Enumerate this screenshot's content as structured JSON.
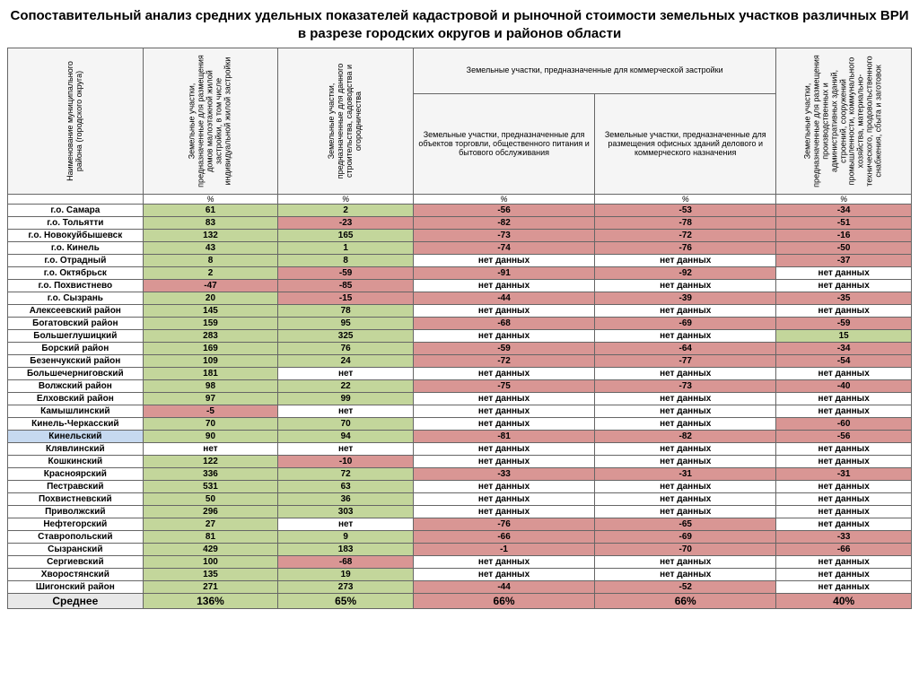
{
  "title": "Сопоставительный анализ средних удельных показателей кадастровой и рыночной стоимости земельных участков различных ВРИ в разрезе городских округов и районов области",
  "headers": {
    "col0": "Наименование муниципального района (городского округа)",
    "col1": "Земельные участки, предназначенные для размещения домов малоэтажной жилой застройки, в том числе индивидуальной жилой застройки",
    "col2": "Земельные участки, предназначенные для данного строительства, садоводства и огородничества",
    "group": "Земельные участки, предназначенные для коммерческой застройки",
    "col3": "Земельные участки, предназначенные для объектов торговли, общественного питания и бытового обслуживания",
    "col4": "Земельные участки, предназначенные для размещения офисных зданий делового и коммерческого назначения",
    "col5": "Земельные участки, предназначенные для размещения производственных и административных зданий, строений, сооружений промышленности, коммунального хозяйства, материально-технического, продовольственного снабжения, сбыта и заготовок"
  },
  "pct_label": "%",
  "nodata": "нет данных",
  "net": "нет",
  "colors": {
    "green": "#c3d69b",
    "red": "#d99694"
  },
  "rows": [
    {
      "name": "г.о. Самара",
      "v": [
        "61",
        "2",
        "-56",
        "-53",
        "-34"
      ],
      "c": [
        "green",
        "green",
        "red",
        "red",
        "red"
      ]
    },
    {
      "name": "г.о. Тольятти",
      "v": [
        "83",
        "-23",
        "-82",
        "-78",
        "-51"
      ],
      "c": [
        "green",
        "red",
        "red",
        "red",
        "red"
      ]
    },
    {
      "name": "г.о. Новокуйбышевск",
      "v": [
        "132",
        "165",
        "-73",
        "-72",
        "-16"
      ],
      "c": [
        "green",
        "green",
        "red",
        "red",
        "red"
      ]
    },
    {
      "name": "г.о. Кинель",
      "v": [
        "43",
        "1",
        "-74",
        "-76",
        "-50"
      ],
      "c": [
        "green",
        "green",
        "red",
        "red",
        "red"
      ]
    },
    {
      "name": "г.о. Отрадный",
      "v": [
        "8",
        "8",
        "нет данных",
        "нет данных",
        "-37"
      ],
      "c": [
        "green",
        "green",
        "none",
        "none",
        "red"
      ]
    },
    {
      "name": "г.о. Октябрьск",
      "v": [
        "2",
        "-59",
        "-91",
        "-92",
        "нет данных"
      ],
      "c": [
        "green",
        "red",
        "red",
        "red",
        "none"
      ]
    },
    {
      "name": "г.о. Похвистнево",
      "v": [
        "-47",
        "-85",
        "нет данных",
        "нет данных",
        "нет данных"
      ],
      "c": [
        "red",
        "red",
        "none",
        "none",
        "none"
      ]
    },
    {
      "name": "г.о. Сызрань",
      "v": [
        "20",
        "-15",
        "-44",
        "-39",
        "-35"
      ],
      "c": [
        "green",
        "red",
        "red",
        "red",
        "red"
      ]
    },
    {
      "name": "Алексеевский район",
      "v": [
        "145",
        "78",
        "нет данных",
        "нет данных",
        "нет данных"
      ],
      "c": [
        "green",
        "green",
        "none",
        "none",
        "none"
      ]
    },
    {
      "name": "Богатовский район",
      "v": [
        "159",
        "95",
        "-68",
        "-69",
        "-59"
      ],
      "c": [
        "green",
        "green",
        "red",
        "red",
        "red"
      ]
    },
    {
      "name": "Большеглушицкий",
      "v": [
        "283",
        "325",
        "нет данных",
        "нет данных",
        "15"
      ],
      "c": [
        "green",
        "green",
        "none",
        "none",
        "green"
      ]
    },
    {
      "name": "Борский район",
      "v": [
        "169",
        "76",
        "-59",
        "-64",
        "-34"
      ],
      "c": [
        "green",
        "green",
        "red",
        "red",
        "red"
      ]
    },
    {
      "name": "Безенчукский район",
      "v": [
        "109",
        "24",
        "-72",
        "-77",
        "-54"
      ],
      "c": [
        "green",
        "green",
        "red",
        "red",
        "red"
      ]
    },
    {
      "name": "Большечерниговский",
      "v": [
        "181",
        "нет",
        "нет данных",
        "нет данных",
        "нет данных"
      ],
      "c": [
        "green",
        "none",
        "none",
        "none",
        "none"
      ]
    },
    {
      "name": "Волжский район",
      "v": [
        "98",
        "22",
        "-75",
        "-73",
        "-40"
      ],
      "c": [
        "green",
        "green",
        "red",
        "red",
        "red"
      ]
    },
    {
      "name": "Елховский район",
      "v": [
        "97",
        "99",
        "нет данных",
        "нет данных",
        "нет данных"
      ],
      "c": [
        "green",
        "green",
        "none",
        "none",
        "none"
      ]
    },
    {
      "name": "Камышлинский",
      "v": [
        "-5",
        "нет",
        "нет данных",
        "нет данных",
        "нет данных"
      ],
      "c": [
        "red",
        "none",
        "none",
        "none",
        "none"
      ]
    },
    {
      "name": "Кинель-Черкасский",
      "v": [
        "70",
        "70",
        "нет данных",
        "нет данных",
        "-60"
      ],
      "c": [
        "green",
        "green",
        "none",
        "none",
        "red"
      ]
    },
    {
      "name": "Кинельский",
      "v": [
        "90",
        "94",
        "-81",
        "-82",
        "-56"
      ],
      "c": [
        "green",
        "green",
        "red",
        "red",
        "red"
      ],
      "hl": true
    },
    {
      "name": "Клявлинский",
      "v": [
        "нет",
        "нет",
        "нет данных",
        "нет данных",
        "нет данных"
      ],
      "c": [
        "none",
        "none",
        "none",
        "none",
        "none"
      ]
    },
    {
      "name": "Кошкинский",
      "v": [
        "122",
        "-10",
        "нет данных",
        "нет данных",
        "нет данных"
      ],
      "c": [
        "green",
        "red",
        "none",
        "none",
        "none"
      ]
    },
    {
      "name": "Красноярский",
      "v": [
        "336",
        "72",
        "-33",
        "-31",
        "-31"
      ],
      "c": [
        "green",
        "green",
        "red",
        "red",
        "red"
      ]
    },
    {
      "name": "Пестравский",
      "v": [
        "531",
        "63",
        "нет данных",
        "нет данных",
        "нет данных"
      ],
      "c": [
        "green",
        "green",
        "none",
        "none",
        "none"
      ]
    },
    {
      "name": "Похвистневский",
      "v": [
        "50",
        "36",
        "нет данных",
        "нет данных",
        "нет данных"
      ],
      "c": [
        "green",
        "green",
        "none",
        "none",
        "none"
      ]
    },
    {
      "name": "Приволжский",
      "v": [
        "296",
        "303",
        "нет данных",
        "нет данных",
        "нет данных"
      ],
      "c": [
        "green",
        "green",
        "none",
        "none",
        "none"
      ]
    },
    {
      "name": "Нефтегорский",
      "v": [
        "27",
        "нет",
        "-76",
        "-65",
        "нет данных"
      ],
      "c": [
        "green",
        "none",
        "red",
        "red",
        "none"
      ]
    },
    {
      "name": "Ставропольский",
      "v": [
        "81",
        "9",
        "-66",
        "-69",
        "-33"
      ],
      "c": [
        "green",
        "green",
        "red",
        "red",
        "red"
      ]
    },
    {
      "name": "Сызранский",
      "v": [
        "429",
        "183",
        "-1",
        "-70",
        "-66"
      ],
      "c": [
        "green",
        "green",
        "red",
        "red",
        "red"
      ]
    },
    {
      "name": "Сергиевский",
      "v": [
        "100",
        "-68",
        "нет данных",
        "нет данных",
        "нет данных"
      ],
      "c": [
        "green",
        "red",
        "none",
        "none",
        "none"
      ]
    },
    {
      "name": "Хворостянский",
      "v": [
        "135",
        "19",
        "нет данных",
        "нет данных",
        "нет данных"
      ],
      "c": [
        "green",
        "green",
        "none",
        "none",
        "none"
      ]
    },
    {
      "name": "Шигонский район",
      "v": [
        "271",
        "273",
        "-44",
        "-52",
        "нет данных"
      ],
      "c": [
        "green",
        "green",
        "red",
        "red",
        "none"
      ]
    }
  ],
  "summary": {
    "name": "Среднее",
    "v": [
      "136%",
      "65%",
      "66%",
      "66%",
      "40%"
    ],
    "c": [
      "green",
      "green",
      "red",
      "red",
      "red"
    ]
  }
}
